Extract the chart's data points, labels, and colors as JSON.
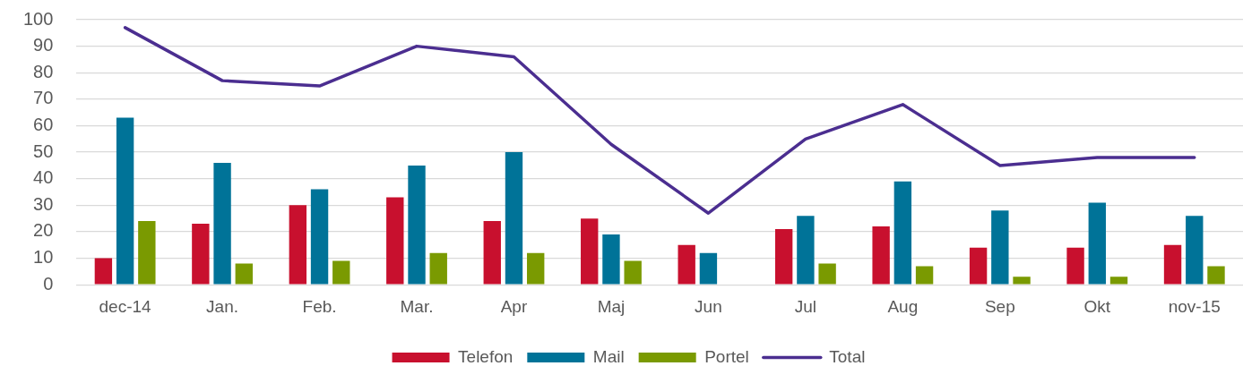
{
  "chart_data": {
    "type": "bar",
    "categories": [
      "dec-14",
      "Jan.",
      "Feb.",
      "Mar.",
      "Apr",
      "Maj",
      "Jun",
      "Jul",
      "Aug",
      "Sep",
      "Okt",
      "nov-15"
    ],
    "series": [
      {
        "name": "Telefon",
        "color": "#c8102e",
        "values": [
          10,
          23,
          30,
          33,
          24,
          25,
          15,
          21,
          22,
          14,
          14,
          15
        ]
      },
      {
        "name": "Mail",
        "color": "#007398",
        "values": [
          63,
          46,
          36,
          45,
          50,
          19,
          12,
          26,
          39,
          28,
          31,
          26
        ]
      },
      {
        "name": "Portel",
        "color": "#7a9a01",
        "values": [
          24,
          8,
          9,
          12,
          12,
          9,
          0,
          8,
          7,
          3,
          3,
          7
        ]
      },
      {
        "name": "Total",
        "type": "line",
        "color": "#4b2e90",
        "values": [
          97,
          77,
          75,
          90,
          86,
          53,
          27,
          55,
          68,
          45,
          48,
          48
        ]
      }
    ],
    "ylim": [
      0,
      100
    ],
    "yticks": [
      0,
      10,
      20,
      30,
      40,
      50,
      60,
      70,
      80,
      90,
      100
    ],
    "grid": "y",
    "legend": "bottom",
    "marker": "none",
    "line_style": "solid"
  }
}
